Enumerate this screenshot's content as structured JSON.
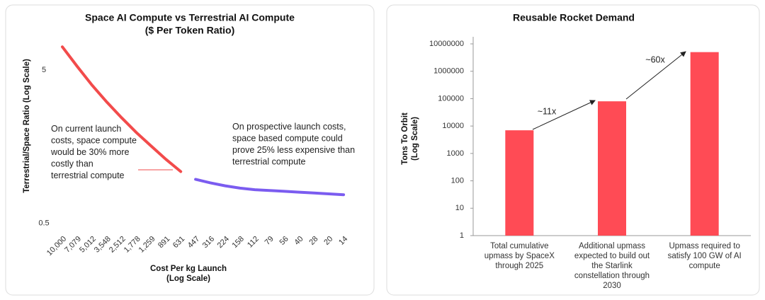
{
  "chart_data": [
    {
      "type": "line",
      "title": [
        "Space AI Compute vs Terrestrial AI Compute",
        "($ Per Token Ratio)"
      ],
      "x_label": [
        "Cost Per kg Launch",
        "(Log Scale)"
      ],
      "y_label": "Terrestrial/Space Ratio (Log Scale)",
      "log_y": true,
      "categories": [
        "10,000",
        "7,079",
        "5,012",
        "3,548",
        "2,512",
        "1,778",
        "1,259",
        "891",
        "631",
        "447",
        "316",
        "224",
        "158",
        "112",
        "79",
        "56",
        "40",
        "28",
        "20",
        "14"
      ],
      "series": [
        {
          "name": "On current launch costs, space compute would be 30% more costly than terrestrial compute",
          "color": "#f24b4b",
          "values": [
            7.1,
            5.3,
            4.0,
            3.1,
            2.45,
            1.96,
            1.6,
            1.31,
            1.09,
            null,
            null,
            null,
            null,
            null,
            null,
            null,
            null,
            null,
            null,
            null
          ]
        },
        {
          "name": "On prospective launch costs, space based compute could prove 25% less expensive than terrestrial compute",
          "color": "#7b5cf0",
          "values": [
            null,
            null,
            null,
            null,
            null,
            null,
            null,
            null,
            null,
            0.97,
            0.92,
            0.88,
            0.85,
            0.83,
            0.82,
            0.81,
            0.8,
            0.79,
            0.78,
            0.77
          ]
        }
      ],
      "ylim": [
        0.43,
        8
      ],
      "yticks": [
        0.5,
        5
      ]
    },
    {
      "type": "bar",
      "title": [
        "Reusable Rocket Demand"
      ],
      "y_label": [
        "Tons To Orbit",
        "(Log Scale)"
      ],
      "log_y": true,
      "categories": [
        "Total cumulative upmass by SpaceX through 2025",
        "Additional upmass expected to build out the Starlink constellation through 2030",
        "Upmass required to satisfy 100 GW of AI compute"
      ],
      "values": [
        7000,
        80000,
        5000000
      ],
      "color": "#ff4b55",
      "annotations": [
        "~11x",
        "~60x"
      ],
      "ylim": [
        1,
        10000000
      ],
      "yticks": [
        1,
        10,
        100,
        1000,
        10000,
        100000,
        1000000,
        10000000
      ]
    }
  ]
}
